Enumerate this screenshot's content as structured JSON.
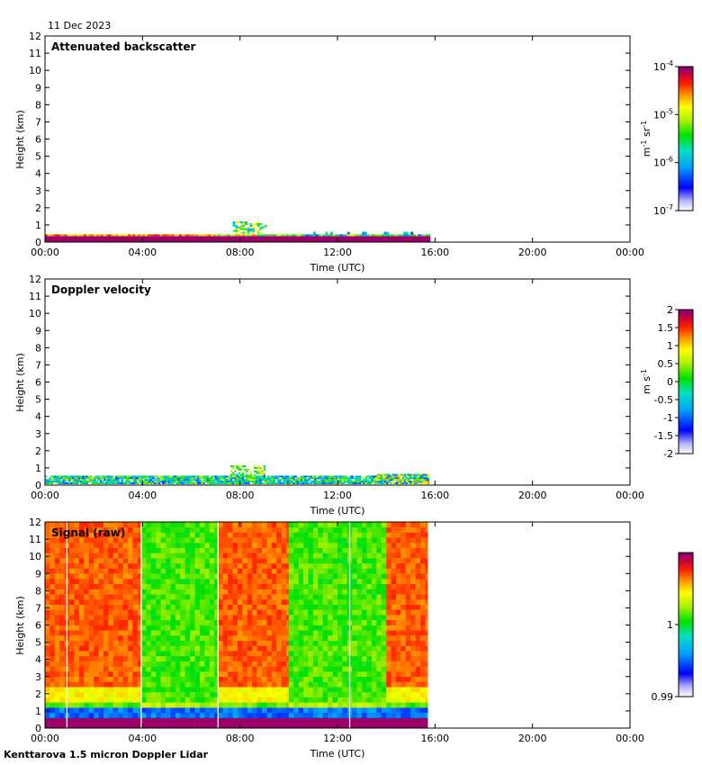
{
  "date": "11 Dec 2023",
  "instrument": "Kenttarova 1.5 micron Doppler Lidar",
  "chart_data": [
    {
      "type": "heatmap",
      "title": "Attenuated backscatter",
      "xlabel": "Time (UTC)",
      "ylabel": "Height (km)",
      "xticks": [
        "00:00",
        "04:00",
        "08:00",
        "12:00",
        "16:00",
        "20:00",
        "00:00"
      ],
      "xlim": [
        0,
        24
      ],
      "ylim": [
        0,
        12
      ],
      "yticks": [
        0,
        1,
        2,
        3,
        4,
        5,
        6,
        7,
        8,
        9,
        10,
        11,
        12
      ],
      "colorbar": {
        "label": "m-1 sr-1",
        "scale": "log",
        "ticks": [
          {
            "base": "10",
            "exp": "-7"
          },
          {
            "base": "10",
            "exp": "-6"
          },
          {
            "base": "10",
            "exp": "-5"
          },
          {
            "base": "10",
            "exp": "-4"
          }
        ]
      },
      "data_extent_hours": [
        0,
        15.7
      ],
      "features": [
        {
          "name": "near-surface high backscatter layer",
          "t0": 0,
          "t1": 15.7,
          "h0": 0,
          "h1": 0.35
        },
        {
          "name": "cloud patch",
          "t0": 7.6,
          "t1": 9.0,
          "h0": 0.4,
          "h1": 1.1
        },
        {
          "name": "low returns",
          "t0": 10.8,
          "t1": 15.6,
          "h0": 0.3,
          "h1": 0.6
        }
      ]
    },
    {
      "type": "heatmap",
      "title": "Doppler velocity",
      "xlabel": "Time (UTC)",
      "ylabel": "Height (km)",
      "xticks": [
        "00:00",
        "04:00",
        "08:00",
        "12:00",
        "16:00",
        "20:00",
        "00:00"
      ],
      "xlim": [
        0,
        24
      ],
      "ylim": [
        0,
        12
      ],
      "yticks": [
        0,
        1,
        2,
        3,
        4,
        5,
        6,
        7,
        8,
        9,
        10,
        11,
        12
      ],
      "colorbar": {
        "label": "m s-1",
        "scale": "linear",
        "range": [
          -2,
          2
        ],
        "ticks": [
          "-2",
          "-1.5",
          "-1",
          "-0.5",
          "0",
          "0.5",
          "1",
          "1.5",
          "2"
        ]
      },
      "data_extent_hours": [
        0,
        15.7
      ],
      "features": [
        {
          "name": "near-surface velocity layer",
          "t0": 0,
          "t1": 15.7,
          "h0": 0.05,
          "h1": 0.45
        },
        {
          "name": "cloud patch",
          "t0": 7.6,
          "t1": 9.0,
          "h0": 0.4,
          "h1": 1.1
        },
        {
          "name": "mixed returns",
          "t0": 13.5,
          "t1": 15.7,
          "h0": 0.3,
          "h1": 0.65
        }
      ]
    },
    {
      "type": "heatmap",
      "title": "Signal (raw)",
      "xlabel": "Time (UTC)",
      "ylabel": "Height (km)",
      "xticks": [
        "00:00",
        "04:00",
        "08:00",
        "12:00",
        "16:00",
        "20:00",
        "00:00"
      ],
      "xlim": [
        0,
        24
      ],
      "ylim": [
        0,
        12
      ],
      "yticks": [
        0,
        1,
        2,
        3,
        4,
        5,
        6,
        7,
        8,
        9,
        10,
        11,
        12
      ],
      "colorbar": {
        "label": "",
        "scale": "linear",
        "ticks": [
          "0.99",
          "1"
        ]
      },
      "data_extent_hours": [
        0,
        15.7
      ],
      "blocks": [
        {
          "t0": 0,
          "t1": 3.95,
          "level": "high"
        },
        {
          "t0": 3.95,
          "t1": 7.1,
          "level": "low"
        },
        {
          "t0": 7.1,
          "t1": 10.0,
          "level": "high"
        },
        {
          "t0": 10.0,
          "t1": 14.0,
          "level": "low"
        },
        {
          "t0": 14.0,
          "t1": 15.7,
          "level": "high"
        }
      ]
    }
  ]
}
